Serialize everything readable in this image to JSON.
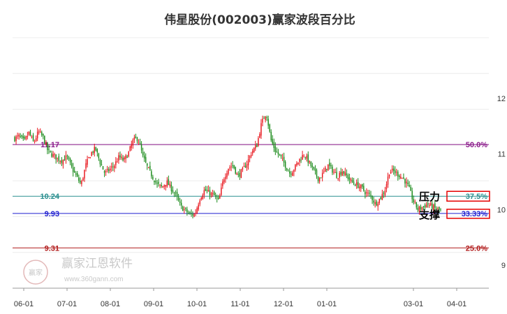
{
  "chart_data": {
    "type": "candlestick",
    "title": "伟星股份(002003)赢家波段百分比",
    "ylim": [
      9.0,
      12.0
    ],
    "y_ticks": [
      {
        "value": 12,
        "label": "12"
      },
      {
        "value": 11,
        "label": "11"
      },
      {
        "value": 10,
        "label": "10"
      },
      {
        "value": 9,
        "label": "9"
      }
    ],
    "x_ticks": [
      "06-01",
      "07-01",
      "08-01",
      "09-01",
      "10-01",
      "11-01",
      "12-01",
      "01-01",
      "03-01",
      "04-01"
    ],
    "levels": [
      {
        "price": 11.17,
        "price_label": "11.17",
        "pct_label": "50.0%",
        "color": "#8b1a8b"
      },
      {
        "price": 10.24,
        "price_label": "10.24",
        "pct_label": "37.5%",
        "color": "#2a8f8f"
      },
      {
        "price": 9.93,
        "price_label": "9.93",
        "pct_label": "33.33%",
        "color": "#1f1fd0"
      },
      {
        "price": 9.31,
        "price_label": "9.31",
        "pct_label": "25.0%",
        "color": "#b01818"
      }
    ],
    "zones": [
      {
        "label": "压力",
        "pct_label": "37.5%"
      },
      {
        "label": "支撑",
        "pct_label": "33.33%"
      }
    ],
    "candle_colors": {
      "up": "#e8141b",
      "down": "#1a8a1a"
    },
    "price_path": [
      [
        0,
        11.28
      ],
      [
        4,
        11.32
      ],
      [
        8,
        11.22
      ],
      [
        12,
        11.38
      ],
      [
        16,
        11.2
      ],
      [
        20,
        11.4
      ],
      [
        24,
        11.3
      ],
      [
        28,
        11.05
      ],
      [
        32,
        10.98
      ],
      [
        36,
        10.92
      ],
      [
        40,
        10.88
      ],
      [
        44,
        10.95
      ],
      [
        48,
        10.75
      ],
      [
        52,
        10.6
      ],
      [
        56,
        10.45
      ],
      [
        60,
        10.8
      ],
      [
        64,
        11.0
      ],
      [
        68,
        11.1
      ],
      [
        72,
        10.85
      ],
      [
        76,
        10.65
      ],
      [
        80,
        10.72
      ],
      [
        84,
        10.8
      ],
      [
        88,
        10.95
      ],
      [
        92,
        10.88
      ],
      [
        96,
        11.02
      ],
      [
        100,
        11.25
      ],
      [
        104,
        11.28
      ],
      [
        108,
        10.95
      ],
      [
        112,
        10.75
      ],
      [
        116,
        10.6
      ],
      [
        120,
        10.45
      ],
      [
        124,
        10.4
      ],
      [
        128,
        10.5
      ],
      [
        132,
        10.38
      ],
      [
        136,
        10.25
      ],
      [
        140,
        10.05
      ],
      [
        144,
        9.98
      ],
      [
        148,
        9.9
      ],
      [
        152,
        9.92
      ],
      [
        156,
        10.2
      ],
      [
        160,
        10.35
      ],
      [
        164,
        10.3
      ],
      [
        168,
        10.25
      ],
      [
        172,
        10.15
      ],
      [
        176,
        10.55
      ],
      [
        180,
        10.75
      ],
      [
        184,
        10.8
      ],
      [
        188,
        10.6
      ],
      [
        192,
        10.7
      ],
      [
        196,
        10.85
      ],
      [
        200,
        11.05
      ],
      [
        204,
        11.15
      ],
      [
        208,
        11.55
      ],
      [
        212,
        11.75
      ],
      [
        216,
        11.25
      ],
      [
        220,
        11.05
      ],
      [
        224,
        10.95
      ],
      [
        228,
        10.8
      ],
      [
        232,
        10.65
      ],
      [
        236,
        10.75
      ],
      [
        240,
        10.9
      ],
      [
        244,
        11.0
      ],
      [
        248,
        10.85
      ],
      [
        252,
        10.7
      ],
      [
        256,
        10.55
      ],
      [
        260,
        10.65
      ],
      [
        264,
        10.8
      ],
      [
        268,
        10.7
      ],
      [
        272,
        10.6
      ],
      [
        276,
        10.7
      ],
      [
        280,
        10.6
      ],
      [
        284,
        10.5
      ],
      [
        288,
        10.45
      ],
      [
        292,
        10.4
      ],
      [
        296,
        10.3
      ],
      [
        300,
        10.25
      ],
      [
        304,
        10.1
      ],
      [
        308,
        10.2
      ],
      [
        312,
        10.35
      ],
      [
        316,
        10.7
      ],
      [
        320,
        10.68
      ],
      [
        324,
        10.62
      ],
      [
        328,
        10.55
      ],
      [
        332,
        10.4
      ],
      [
        336,
        10.15
      ],
      [
        340,
        10.0
      ],
      [
        344,
        10.05
      ],
      [
        348,
        10.1
      ],
      [
        352,
        10.05
      ],
      [
        356,
        10.0
      ],
      [
        359,
        9.98
      ]
    ]
  },
  "watermark": {
    "brand": "赢家江恩软件",
    "url": "www.360gann.com",
    "seal": "赢家"
  }
}
